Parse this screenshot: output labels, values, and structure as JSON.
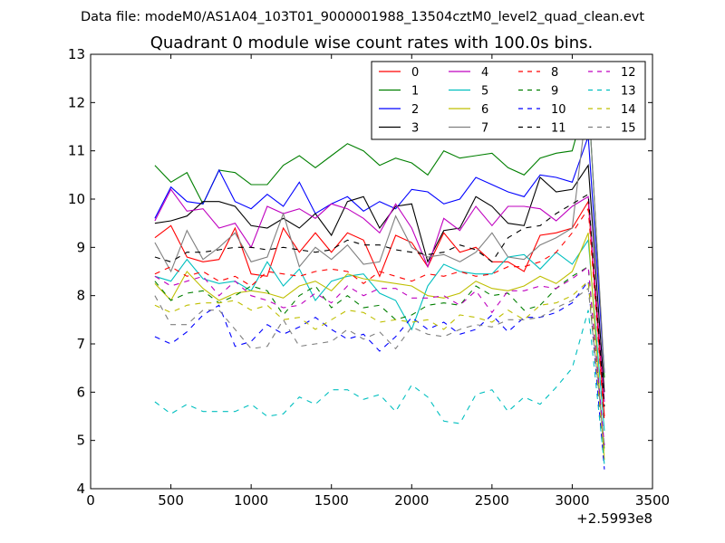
{
  "suptitle": "Data file: modeM0/AS1A04_103T01_9000001988_13504cztM0_level2_quad_clean.evt",
  "chart_data": {
    "type": "line",
    "title": "Quadrant 0 module wise count rates with 100.0s bins.",
    "xlabel": "",
    "ylabel": "",
    "x_offset_label": "+2.5993e8",
    "xlim": [
      0,
      3500
    ],
    "ylim": [
      4,
      13
    ],
    "x_ticks": [
      0,
      500,
      1000,
      1500,
      2000,
      2500,
      3000,
      3500
    ],
    "y_ticks": [
      4,
      5,
      6,
      7,
      8,
      9,
      10,
      11,
      12,
      13
    ],
    "grid": false,
    "legend_placement": "top-right",
    "legend_columns": 4,
    "x": [
      400,
      500,
      600,
      700,
      800,
      900,
      1000,
      1100,
      1200,
      1300,
      1400,
      1500,
      1600,
      1700,
      1800,
      1900,
      2000,
      2100,
      2200,
      2300,
      2400,
      2500,
      2600,
      2700,
      2800,
      2900,
      3000,
      3100,
      3200
    ],
    "series": [
      {
        "name": "0",
        "color": "#ff0000",
        "dash": "solid",
        "values": [
          9.2,
          9.45,
          8.8,
          8.7,
          8.75,
          9.4,
          8.45,
          8.4,
          9.4,
          8.9,
          9.3,
          8.9,
          9.3,
          9.15,
          8.4,
          9.25,
          9.1,
          8.6,
          9.3,
          8.9,
          9.0,
          8.7,
          8.7,
          8.5,
          9.25,
          9.3,
          9.4,
          9.95,
          5.5
        ]
      },
      {
        "name": "1",
        "color": "#007f00",
        "dash": "solid",
        "values": [
          10.7,
          10.35,
          10.55,
          9.9,
          10.6,
          10.55,
          10.3,
          10.3,
          10.7,
          10.9,
          10.65,
          10.9,
          11.15,
          11.0,
          10.7,
          10.85,
          10.75,
          10.5,
          11.0,
          10.85,
          10.9,
          10.95,
          10.65,
          10.5,
          10.85,
          10.95,
          11.0,
          12.2,
          6.3
        ]
      },
      {
        "name": "2",
        "color": "#0000ff",
        "dash": "solid",
        "values": [
          9.6,
          10.25,
          9.95,
          9.9,
          10.6,
          9.95,
          9.8,
          10.1,
          9.85,
          10.35,
          9.7,
          9.9,
          10.05,
          9.75,
          9.95,
          9.8,
          10.2,
          10.15,
          9.9,
          10.0,
          10.45,
          10.3,
          10.15,
          10.05,
          10.5,
          10.45,
          10.35,
          11.3,
          6.4
        ]
      },
      {
        "name": "3",
        "color": "#000000",
        "dash": "solid",
        "values": [
          9.5,
          9.55,
          9.65,
          9.95,
          9.95,
          9.85,
          9.45,
          9.4,
          9.6,
          9.4,
          9.7,
          9.25,
          9.95,
          10.05,
          9.4,
          9.85,
          9.9,
          8.7,
          9.35,
          9.4,
          10.05,
          9.85,
          9.5,
          9.45,
          10.45,
          10.15,
          10.2,
          10.7,
          6.0
        ]
      },
      {
        "name": "4",
        "color": "#bf00bf",
        "dash": "solid",
        "values": [
          9.55,
          10.2,
          9.75,
          9.8,
          9.4,
          9.5,
          9.0,
          9.85,
          9.7,
          9.8,
          9.6,
          9.9,
          9.8,
          9.6,
          9.3,
          9.9,
          9.4,
          8.6,
          9.6,
          9.35,
          9.85,
          9.45,
          9.85,
          9.85,
          9.8,
          9.55,
          9.85,
          10.05,
          5.8
        ]
      },
      {
        "name": "5",
        "color": "#00bfbf",
        "dash": "solid",
        "values": [
          8.4,
          8.3,
          8.75,
          8.35,
          8.25,
          8.3,
          8.1,
          8.7,
          8.2,
          8.55,
          7.9,
          8.3,
          8.4,
          8.45,
          8.05,
          7.9,
          7.3,
          8.2,
          8.65,
          8.5,
          8.45,
          8.45,
          8.8,
          8.85,
          8.55,
          8.9,
          8.65,
          9.15,
          5.2
        ]
      },
      {
        "name": "6",
        "color": "#bfbf00",
        "dash": "solid",
        "values": [
          8.25,
          7.9,
          8.5,
          8.15,
          7.9,
          8.05,
          8.1,
          8.05,
          7.95,
          8.2,
          8.3,
          8.1,
          8.45,
          8.35,
          8.3,
          8.25,
          8.2,
          8.0,
          7.95,
          8.05,
          8.3,
          8.15,
          8.1,
          8.2,
          8.4,
          8.25,
          8.5,
          9.3,
          4.6
        ]
      },
      {
        "name": "7",
        "color": "#7f7f7f",
        "dash": "solid",
        "values": [
          9.1,
          8.5,
          9.35,
          8.75,
          9.0,
          9.3,
          8.7,
          8.8,
          9.7,
          8.6,
          9.0,
          8.75,
          9.05,
          8.65,
          8.7,
          9.65,
          9.0,
          8.8,
          8.85,
          8.7,
          8.9,
          9.3,
          8.8,
          8.75,
          9.05,
          9.2,
          9.4,
          12.2,
          6.4
        ]
      },
      {
        "name": "8",
        "color": "#ff0000",
        "dash": "dashed",
        "values": [
          8.45,
          8.6,
          8.4,
          8.5,
          8.3,
          8.4,
          8.2,
          8.5,
          8.45,
          8.4,
          8.5,
          8.55,
          8.5,
          8.25,
          8.5,
          8.4,
          8.3,
          8.45,
          8.4,
          8.5,
          8.4,
          8.45,
          8.6,
          8.6,
          8.7,
          8.9,
          9.3,
          9.8,
          5.4
        ]
      },
      {
        "name": "9",
        "color": "#007f00",
        "dash": "dashed",
        "values": [
          8.3,
          7.9,
          8.05,
          8.1,
          7.85,
          8.0,
          8.2,
          8.1,
          7.6,
          8.0,
          8.2,
          7.75,
          8.0,
          7.75,
          7.8,
          7.5,
          7.6,
          7.8,
          7.85,
          7.8,
          8.2,
          8.0,
          8.05,
          7.7,
          7.8,
          8.15,
          8.4,
          8.6,
          4.8
        ]
      },
      {
        "name": "10",
        "color": "#0000ff",
        "dash": "dashed",
        "values": [
          7.15,
          7.0,
          7.25,
          7.6,
          7.8,
          6.95,
          7.05,
          7.4,
          7.2,
          7.35,
          7.55,
          7.3,
          7.1,
          7.2,
          6.85,
          7.15,
          7.55,
          7.3,
          7.45,
          7.2,
          7.3,
          7.6,
          7.25,
          7.55,
          7.55,
          7.65,
          7.85,
          8.3,
          4.4
        ]
      },
      {
        "name": "11",
        "color": "#000000",
        "dash": "dashed",
        "values": [
          8.8,
          8.7,
          8.9,
          8.9,
          8.95,
          9.0,
          9.0,
          8.95,
          9.0,
          8.95,
          8.9,
          8.95,
          9.15,
          9.05,
          9.05,
          8.95,
          8.9,
          8.85,
          8.9,
          9.05,
          8.95,
          8.7,
          9.2,
          9.4,
          9.45,
          9.7,
          9.9,
          10.1,
          5.7
        ]
      },
      {
        "name": "12",
        "color": "#bf00bf",
        "dash": "dashed",
        "values": [
          8.4,
          8.2,
          8.3,
          8.4,
          8.0,
          8.3,
          8.0,
          7.9,
          7.75,
          7.8,
          8.05,
          7.85,
          8.2,
          8.0,
          8.15,
          8.15,
          7.95,
          7.95,
          8.0,
          7.8,
          8.1,
          7.65,
          8.1,
          8.1,
          8.2,
          8.15,
          8.35,
          8.6,
          4.9
        ]
      },
      {
        "name": "13",
        "color": "#00bfbf",
        "dash": "dashed",
        "values": [
          5.8,
          5.55,
          5.75,
          5.6,
          5.6,
          5.6,
          5.75,
          5.5,
          5.55,
          5.9,
          5.75,
          6.05,
          6.05,
          5.85,
          5.95,
          5.6,
          6.15,
          5.9,
          5.4,
          5.35,
          5.95,
          6.05,
          5.6,
          5.9,
          5.75,
          6.1,
          6.5,
          7.7,
          4.5
        ]
      },
      {
        "name": "14",
        "color": "#bfbf00",
        "dash": "dashed",
        "values": [
          7.8,
          7.65,
          7.8,
          7.85,
          7.85,
          7.9,
          7.7,
          7.8,
          7.5,
          7.55,
          7.3,
          7.5,
          7.7,
          7.65,
          7.45,
          7.5,
          7.45,
          7.5,
          7.3,
          7.6,
          7.55,
          7.45,
          7.7,
          7.5,
          7.8,
          7.85,
          8.0,
          8.3,
          4.7
        ]
      },
      {
        "name": "15",
        "color": "#7f7f7f",
        "dash": "dashed",
        "values": [
          8.0,
          7.4,
          7.4,
          7.7,
          7.7,
          7.3,
          6.9,
          6.95,
          7.5,
          6.95,
          7.0,
          7.05,
          7.3,
          7.1,
          7.25,
          6.9,
          7.35,
          7.2,
          7.15,
          7.3,
          7.4,
          7.35,
          7.5,
          7.5,
          7.55,
          7.75,
          7.9,
          8.15,
          4.9
        ]
      }
    ]
  }
}
